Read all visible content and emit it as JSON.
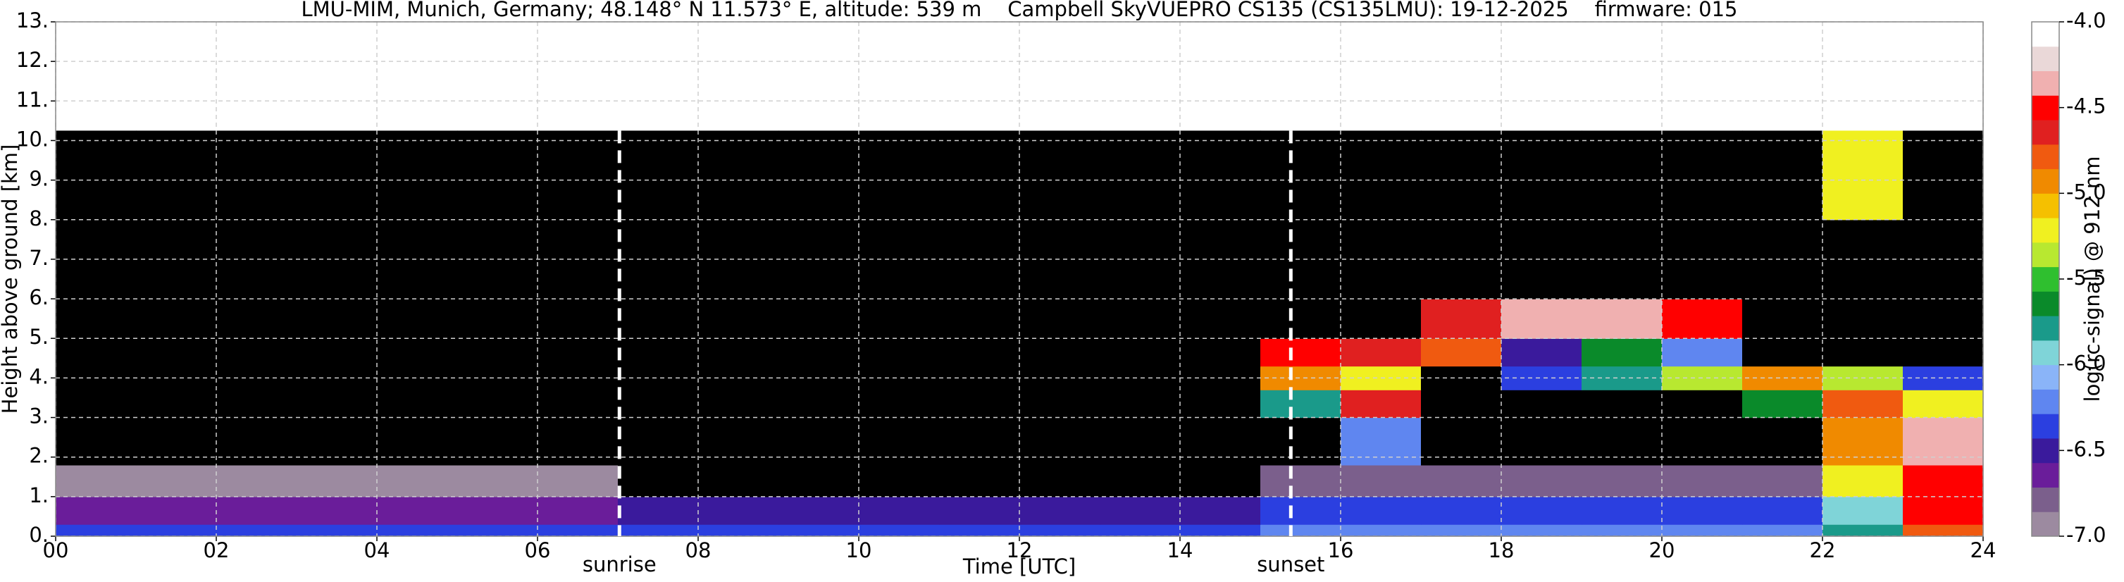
{
  "chart_data": {
    "type": "heatmap",
    "title": "LMU-MIM, Munich, Germany; 48.148° N 11.573° E, altitude: 539 m    Campbell SkyVUEPRO CS135 (CS135LMU): 19-12-2025    firmware: 015",
    "x_label": "Time [UTC]",
    "y_label": "Height above ground [km]",
    "colorbar_label": "log(rc-signal) @ 912 nm",
    "xlim": [
      0,
      24
    ],
    "xticks": [
      {
        "value": 0,
        "label": "00"
      },
      {
        "value": 2,
        "label": "02"
      },
      {
        "value": 4,
        "label": "04"
      },
      {
        "value": 6,
        "label": "06"
      },
      {
        "value": 8,
        "label": "08"
      },
      10,
      12,
      14,
      16,
      18,
      20,
      22,
      24
    ],
    "ylim": [
      0,
      13
    ],
    "yticks": [
      {
        "value": 0,
        "label": "0."
      },
      {
        "value": 1,
        "label": "1."
      },
      {
        "value": 2,
        "label": "2."
      },
      {
        "value": 3,
        "label": "3."
      },
      {
        "value": 4,
        "label": "4."
      },
      {
        "value": 5,
        "label": "5."
      },
      {
        "value": 6,
        "label": "6."
      },
      {
        "value": 7,
        "label": "7."
      },
      {
        "value": 8,
        "label": "8."
      },
      {
        "value": 9,
        "label": "9."
      },
      {
        "value": 10,
        "label": "10."
      },
      {
        "value": 11,
        "label": "11."
      },
      {
        "value": 12,
        "label": "12."
      },
      {
        "value": 13,
        "label": "13."
      }
    ],
    "grid": true,
    "clim": [
      -7,
      -4
    ],
    "cticks": [
      {
        "value": -4,
        "label": "-4.0"
      },
      -4.5,
      {
        "value": -5,
        "label": "-5.0"
      },
      -5.5,
      {
        "value": -6,
        "label": "-6.0"
      },
      -6.5,
      {
        "value": -7,
        "label": "-7.0"
      }
    ],
    "colors": [
      "#9c8aa0",
      "#7b5f8c",
      "#6a1d9a",
      "#3a1a9c",
      "#2b3fe0",
      "#5f86f0",
      "#8ab4f8",
      "#7fd4d8",
      "#1a9a8a",
      "#0a8a2a",
      "#2fbf2f",
      "#b8e830",
      "#f0f020",
      "#f5c000",
      "#f08a00",
      "#f05a10",
      "#e02020",
      "#ff0000",
      "#f0b0b0",
      "#ead8d8",
      "#ffffff"
    ],
    "under_color": "#000000",
    "x_edges": [
      0,
      1,
      2,
      3,
      4,
      5,
      6,
      7,
      8,
      9,
      10,
      11,
      12,
      13,
      14,
      15,
      16,
      17,
      18,
      19,
      20,
      21,
      22,
      23,
      24
    ],
    "y_edges": [
      0,
      0.3,
      1.0,
      1.8,
      3.0,
      3.7,
      4.3,
      5.0,
      6.0,
      8.0,
      10.25
    ],
    "z": [
      [
        -6.3,
        -6.3,
        -6.3,
        -6.3,
        -6.3,
        -6.3,
        -6.3,
        -6.3,
        -6.3,
        -6.3,
        -6.3,
        -6.3,
        -6.3,
        -6.3,
        -6.3,
        -6.2,
        -6.2,
        -6.2,
        -6.2,
        -6.2,
        -6.2,
        -6.2,
        -5.8,
        -4.8
      ],
      [
        -6.7,
        -6.7,
        -6.7,
        -6.7,
        -6.7,
        -6.7,
        -6.7,
        -6.55,
        -6.55,
        -6.55,
        -6.55,
        -6.55,
        -6.55,
        -6.55,
        -6.55,
        -6.35,
        -6.35,
        -6.35,
        -6.35,
        -6.35,
        -6.35,
        -6.35,
        -6.0,
        -4.5
      ],
      [
        -6.9,
        -6.9,
        -6.9,
        -6.9,
        -6.9,
        -6.9,
        -6.9,
        -7.5,
        -7.5,
        -7.5,
        -7.5,
        -7.5,
        -7.5,
        -7.5,
        -7.5,
        -6.85,
        -6.85,
        -6.85,
        -6.85,
        -6.85,
        -6.85,
        -6.85,
        -5.2,
        -4.5
      ],
      [
        -7.5,
        -7.5,
        -7.5,
        -7.5,
        -7.5,
        -7.5,
        -7.5,
        -7.5,
        -7.5,
        -7.5,
        -7.5,
        -7.5,
        -7.5,
        -7.5,
        -7.5,
        -7.5,
        -6.2,
        -7.5,
        -7.5,
        -7.5,
        -7.5,
        -7.5,
        -5.0,
        -4.4
      ],
      [
        -7.5,
        -7.5,
        -7.5,
        -7.5,
        -7.5,
        -7.5,
        -7.5,
        -7.5,
        -7.5,
        -7.5,
        -7.5,
        -7.5,
        -7.5,
        -7.5,
        -7.5,
        -5.8,
        -4.6,
        -7.5,
        -7.5,
        -7.5,
        -7.5,
        -5.6,
        -4.8,
        -5.2
      ],
      [
        -7.5,
        -7.5,
        -7.5,
        -7.5,
        -7.5,
        -7.5,
        -7.5,
        -7.5,
        -7.5,
        -7.5,
        -7.5,
        -7.5,
        -7.5,
        -7.5,
        -7.5,
        -5.0,
        -5.2,
        -7.5,
        -6.3,
        -5.8,
        -5.4,
        -5.0,
        -5.3,
        -6.3
      ],
      [
        -7.5,
        -7.5,
        -7.5,
        -7.5,
        -7.5,
        -7.5,
        -7.5,
        -7.5,
        -7.5,
        -7.5,
        -7.5,
        -7.5,
        -7.5,
        -7.5,
        -7.5,
        -4.5,
        -4.6,
        -4.8,
        -6.5,
        -5.6,
        -6.2,
        -7.5,
        -7.5,
        -7.5
      ],
      [
        -7.5,
        -7.5,
        -7.5,
        -7.5,
        -7.5,
        -7.5,
        -7.5,
        -7.5,
        -7.5,
        -7.5,
        -7.5,
        -7.5,
        -7.5,
        -7.5,
        -7.5,
        -7.5,
        -7.5,
        -4.6,
        -4.3,
        -4.3,
        -4.5,
        -7.5,
        -7.5,
        -7.5
      ],
      [
        -7.3,
        -7.3,
        -7.3,
        -7.3,
        -7.3,
        -7.3,
        -7.3,
        -7.3,
        -7.3,
        -7.3,
        -7.3,
        -7.3,
        -7.3,
        -7.3,
        -7.3,
        -7.3,
        -7.3,
        -7.3,
        -7.3,
        -7.3,
        -7.3,
        -7.3,
        -7.3,
        -7.3
      ],
      [
        -7.2,
        -7.2,
        -7.2,
        -7.2,
        -7.2,
        -7.2,
        -7.2,
        -7.2,
        -7.2,
        -7.2,
        -7.2,
        -7.2,
        -7.2,
        -7.2,
        -7.2,
        -7.2,
        -7.2,
        -7.2,
        -7.2,
        -7.2,
        -7.2,
        -7.2,
        -5.2,
        -7.2
      ]
    ],
    "annotations": [
      {
        "text": "sunrise",
        "x": 7.02
      },
      {
        "text": "sunset",
        "x": 15.38
      }
    ]
  }
}
